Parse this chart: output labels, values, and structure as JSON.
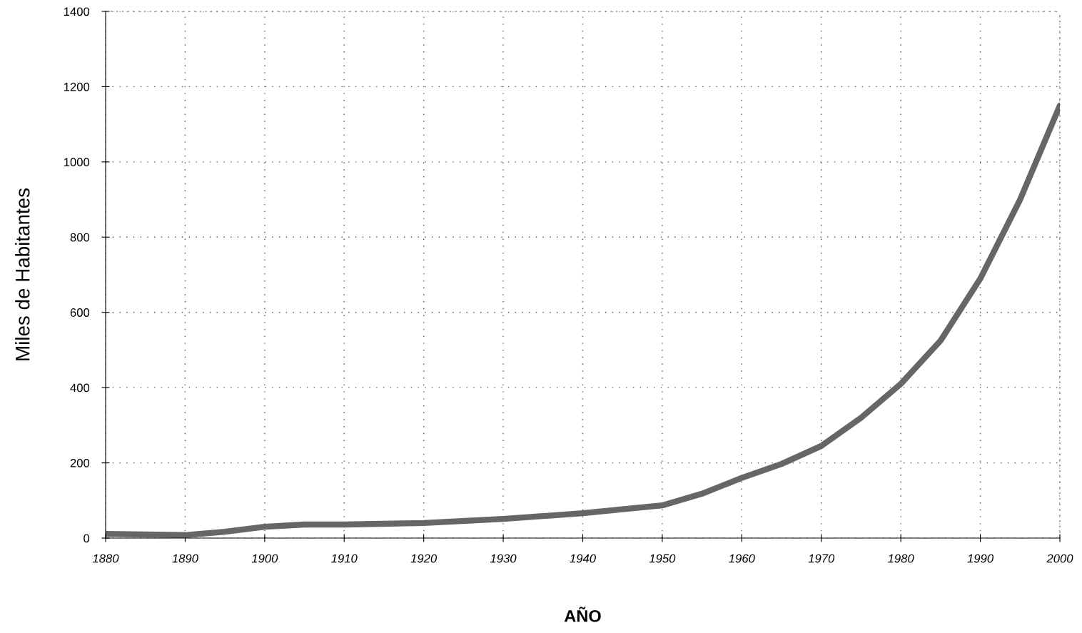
{
  "chart_data": {
    "type": "line",
    "xlabel": "AÑO",
    "ylabel": "Miles de Habitantes",
    "x": [
      1880,
      1890,
      1895,
      1900,
      1905,
      1910,
      1920,
      1930,
      1940,
      1950,
      1955,
      1960,
      1965,
      1970,
      1975,
      1980,
      1985,
      1990,
      1995,
      2000
    ],
    "series": [
      {
        "color": "#666666",
        "values": [
          11,
          8,
          17,
          30,
          36,
          36,
          40,
          51,
          66,
          87,
          118,
          160,
          197,
          245,
          320,
          410,
          525,
          690,
          900,
          1150
        ]
      }
    ],
    "xlim": [
      1880,
      2000
    ],
    "xticks": [
      1880,
      1890,
      1900,
      1910,
      1920,
      1930,
      1940,
      1950,
      1960,
      1970,
      1980,
      1990,
      2000
    ],
    "ylim": [
      0,
      1400
    ],
    "yticks": [
      0,
      200,
      400,
      600,
      800,
      1000,
      1200,
      1400
    ],
    "grid": true,
    "marker": "none",
    "line_style": "solid"
  }
}
